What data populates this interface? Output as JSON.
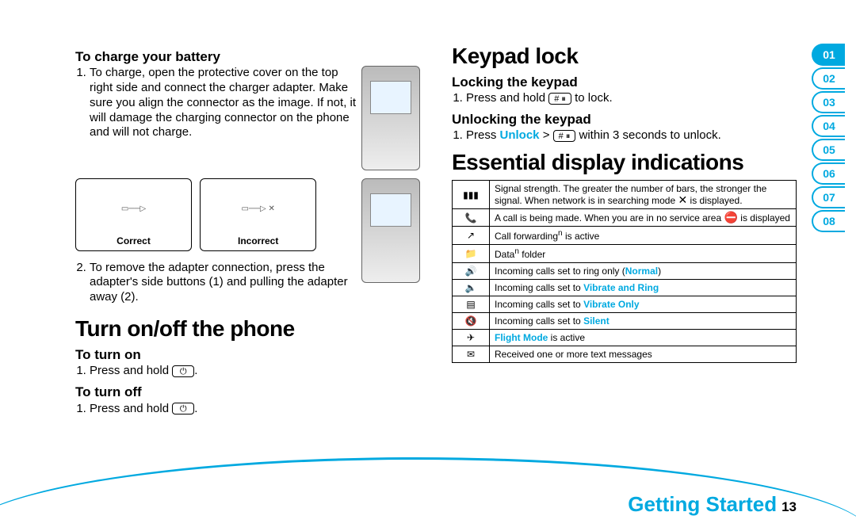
{
  "left": {
    "charge_h": "To charge your battery",
    "charge_1": "To charge, open the protective cover on the top right side and connect the charger adapter. Make sure you align the connector as the image. If not, it will damage the charging connector on the phone and will not charge.",
    "correct": "Correct",
    "incorrect": "Incorrect",
    "charge_2": "To remove the adapter connection, press the adapter's side buttons (1) and pulling the adapter away (2).",
    "turn_h": "Turn on/off the phone",
    "on_h": "To turn on",
    "on_1a": "Press and hold ",
    "on_1b": ".",
    "off_h": "To turn off",
    "off_1a": "Press and hold ",
    "off_1b": "."
  },
  "right": {
    "kp_h": "Keypad lock",
    "lock_h": "Locking the keypad",
    "lock_1a": "Press and hold ",
    "lock_key": "# ⏸",
    "lock_1b": " to lock.",
    "unlock_h": "Unlocking the keypad",
    "unlock_1a": "Press ",
    "unlock_bold": "Unlock",
    "unlock_1b": " > ",
    "unlock_key": "# ⏸",
    "unlock_1c": " within 3 seconds to unlock.",
    "ess_h": "Essential display indications",
    "rows": [
      {
        "sym": "▮▮▮",
        "txt_a": "Signal strength. The greater the number of bars, the stronger the signal. When network is in searching mode ",
        "txt_b": " is displayed.",
        "inline_sym": "✕"
      },
      {
        "sym": "📞",
        "txt_a": "A call is being made. When you are in no service area ",
        "txt_b": " is displayed",
        "inline_sym": "⛔"
      },
      {
        "sym": "↗",
        "txt_a": "Call forwarding",
        "sup": "n",
        "txt_b": " is active"
      },
      {
        "sym": "📁",
        "txt_a": "Data",
        "sup": "n",
        "txt_b": " folder"
      },
      {
        "sym": "🔊",
        "txt_a": "Incoming calls set to ring only (",
        "hl": "Normal",
        "txt_b": ")"
      },
      {
        "sym": "🔈",
        "txt_a": "Incoming calls set to ",
        "hl": "Vibrate and Ring"
      },
      {
        "sym": "▤",
        "txt_a": "Incoming calls set to ",
        "hl": "Vibrate Only"
      },
      {
        "sym": "🔇",
        "txt_a": "Incoming calls set to ",
        "hl": "Silent"
      },
      {
        "sym": "✈",
        "hl": "Flight Mode",
        "txt_b": " is active"
      },
      {
        "sym": "✉",
        "txt_a": "Received one or more text messages"
      }
    ]
  },
  "nav": [
    "01",
    "02",
    "03",
    "04",
    "05",
    "06",
    "07",
    "08"
  ],
  "nav_active": 0,
  "footer_label": "Getting Started",
  "page_number": "13",
  "power_key": "⏻",
  "style": {
    "accent": "#00a9e0"
  }
}
